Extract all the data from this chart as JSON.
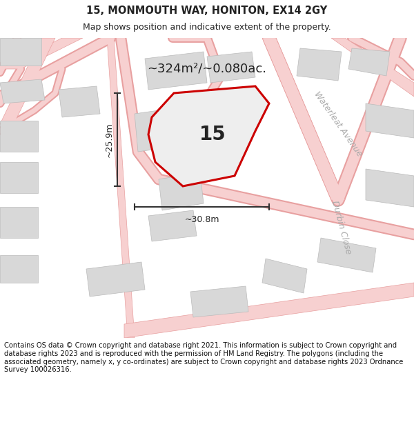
{
  "title": "15, MONMOUTH WAY, HONITON, EX14 2GY",
  "subtitle": "Map shows position and indicative extent of the property.",
  "area_text": "~324m²/~0.080ac.",
  "property_number": "15",
  "dim_width": "~30.8m",
  "dim_height": "~25.9m",
  "street_label1": "Waterleat Avenue",
  "street_label2": "Durbin Close",
  "footer": "Contains OS data © Crown copyright and database right 2021. This information is subject to Crown copyright and database rights 2023 and is reproduced with the permission of HM Land Registry. The polygons (including the associated geometry, namely x, y co-ordinates) are subject to Crown copyright and database rights 2023 Ordnance Survey 100026316.",
  "bg_color": "#ffffff",
  "map_bg": "#ffffff",
  "road_color": "#f7d0d0",
  "road_outline": "#e8a0a0",
  "property_fill": "#eeeeee",
  "property_edge": "#cc0000",
  "building_fill": "#d8d8d8",
  "building_stroke": "#bbbbbb",
  "text_dark": "#222222",
  "text_gray": "#aaaaaa",
  "footer_color": "#111111",
  "dim_color": "#333333",
  "separator_color": "#cccccc"
}
